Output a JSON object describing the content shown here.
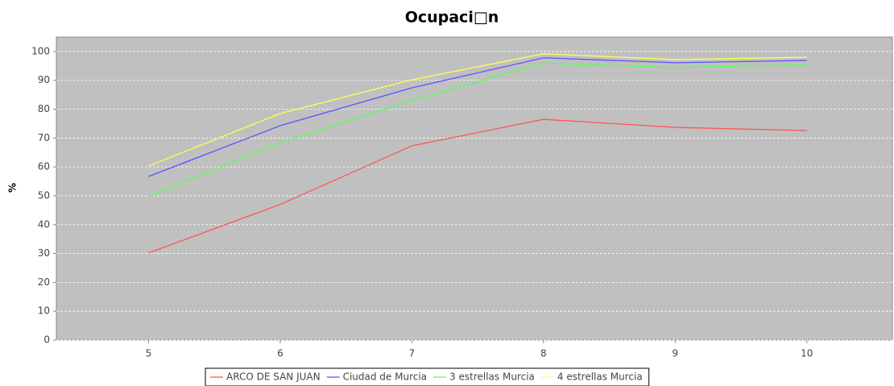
{
  "chart_data": {
    "type": "line",
    "title": "Ocupaci□n",
    "y_label": "%",
    "x": [
      5,
      6,
      7,
      8,
      9,
      10
    ],
    "series": [
      {
        "name": "ARCO DE SAN JUAN",
        "color": "#ff5555",
        "values": [
          30.2,
          47,
          67.3,
          76.5,
          73.7,
          72.6
        ]
      },
      {
        "name": "Ciudad de Murcia",
        "color": "#5555ff",
        "values": [
          56.7,
          74.3,
          87.4,
          97.8,
          96.1,
          96.9
        ]
      },
      {
        "name": "3 estrellas Murcia",
        "color": "#55ff55",
        "values": [
          49.7,
          68.4,
          83,
          96,
          94.4,
          95.5
        ]
      },
      {
        "name": "4 estrellas Murcia",
        "color": "#ffff55",
        "values": [
          60.3,
          78.5,
          90.2,
          99.2,
          97.2,
          98
        ]
      }
    ],
    "xlim": [
      4.3,
      10.65
    ],
    "xticks": [
      5,
      6,
      7,
      8,
      9,
      10
    ],
    "ylim": [
      0,
      105
    ],
    "yticks": [
      0,
      10,
      20,
      30,
      40,
      50,
      60,
      70,
      80,
      90,
      100
    ],
    "grid": true,
    "legend": "bottom"
  }
}
